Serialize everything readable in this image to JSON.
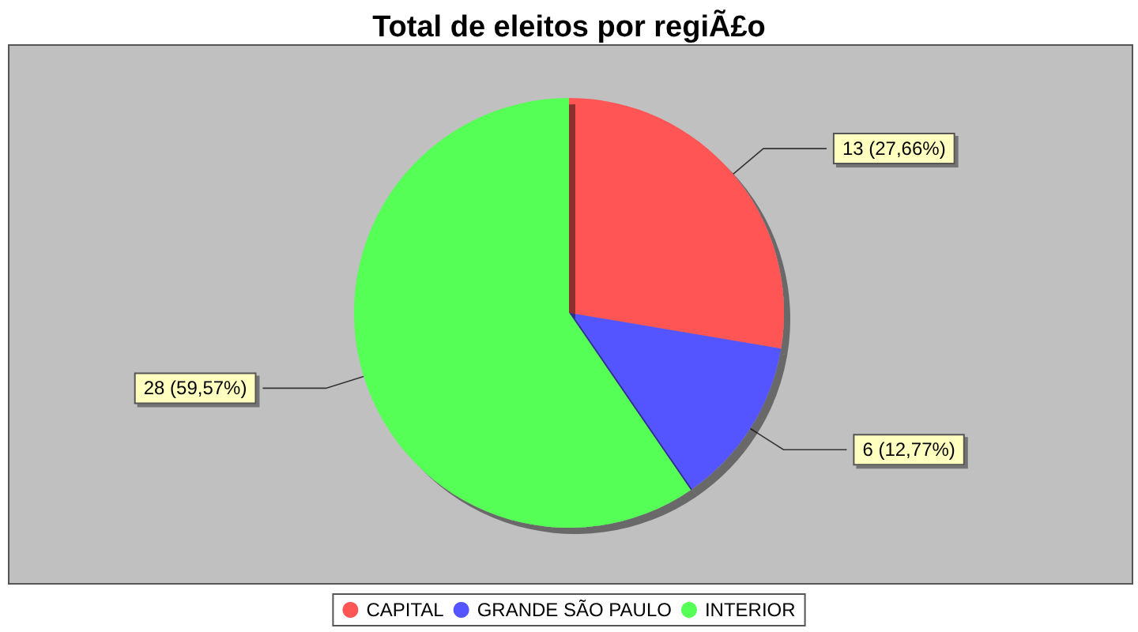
{
  "chart_data": {
    "type": "pie",
    "title": "Total de eleitos por regiÃ£o",
    "categories": [
      "CAPITAL",
      "GRANDE SÃO PAULO",
      "INTERIOR"
    ],
    "values": [
      13,
      6,
      28
    ],
    "colors": [
      "#ff5555",
      "#5555ff",
      "#55ff55"
    ],
    "value_labels": [
      "13 (27,66%)",
      "6 (12,77%)",
      "28 (59,57%)"
    ],
    "legend": "bottom"
  }
}
